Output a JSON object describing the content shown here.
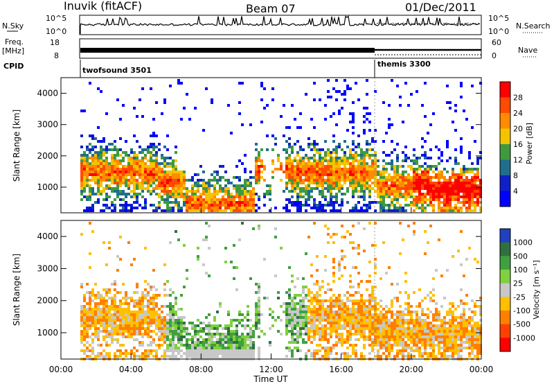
{
  "header": {
    "station": "Inuvik (fitACF)",
    "beam": "Beam 07",
    "date": "01/Dec/2011"
  },
  "panels": {
    "nsky": {
      "left_label": "N.Sky",
      "left_ticks": [
        "10^5",
        "10^0"
      ],
      "right_label": "N.Search",
      "right_ticks": [
        "10^5",
        "10^0"
      ]
    },
    "freq": {
      "left_label_1": "Freq.",
      "left_label_2": "[MHz]",
      "left_ticks": [
        "18",
        "8"
      ],
      "right_label": "Nave",
      "right_ticks": [
        "60",
        "0"
      ]
    },
    "cpid": {
      "label": "CPID",
      "modes": [
        {
          "name": "twofsound 3501",
          "start_hour": 1.0
        },
        {
          "name": "themis 3300",
          "start_hour": 18.0
        }
      ]
    }
  },
  "chart_data": [
    {
      "type": "heatmap",
      "title": "Power",
      "xlabel": "",
      "ylabel": "Slant Range [km]",
      "xlim": [
        0,
        24
      ],
      "ylim": [
        180,
        4500
      ],
      "yticks": [
        1000,
        2000,
        3000,
        4000
      ],
      "colorbar": {
        "label": "Power [dB]",
        "ticks": [
          "28",
          "24",
          "20",
          "16",
          "12",
          "8",
          "4"
        ],
        "colors": [
          "#ff0000",
          "#ff4a00",
          "#ff8c00",
          "#f5c400",
          "#3f9a3f",
          "#1f6e8c",
          "#1020c8",
          "#0000ff"
        ]
      }
    },
    {
      "type": "heatmap",
      "title": "Velocity",
      "xlabel": "Time UT",
      "ylabel": "Slant Range [km]",
      "xlim": [
        0,
        24
      ],
      "ylim": [
        180,
        4500
      ],
      "yticks": [
        1000,
        2000,
        3000,
        4000
      ],
      "xticks": [
        "00:00",
        "04:00",
        "08:00",
        "12:00",
        "16:00",
        "20:00",
        "00:00"
      ],
      "colorbar": {
        "label": "Velocity [m s⁻¹]",
        "ticks": [
          "1000",
          "500",
          "100",
          "25",
          "-25",
          "-100",
          "-500",
          "-1000"
        ],
        "colors": [
          "#2040c0",
          "#307040",
          "#40a040",
          "#80d040",
          "#c8c8c8",
          "#ffc000",
          "#ff8000",
          "#ff4000",
          "#ff0000"
        ]
      }
    }
  ]
}
